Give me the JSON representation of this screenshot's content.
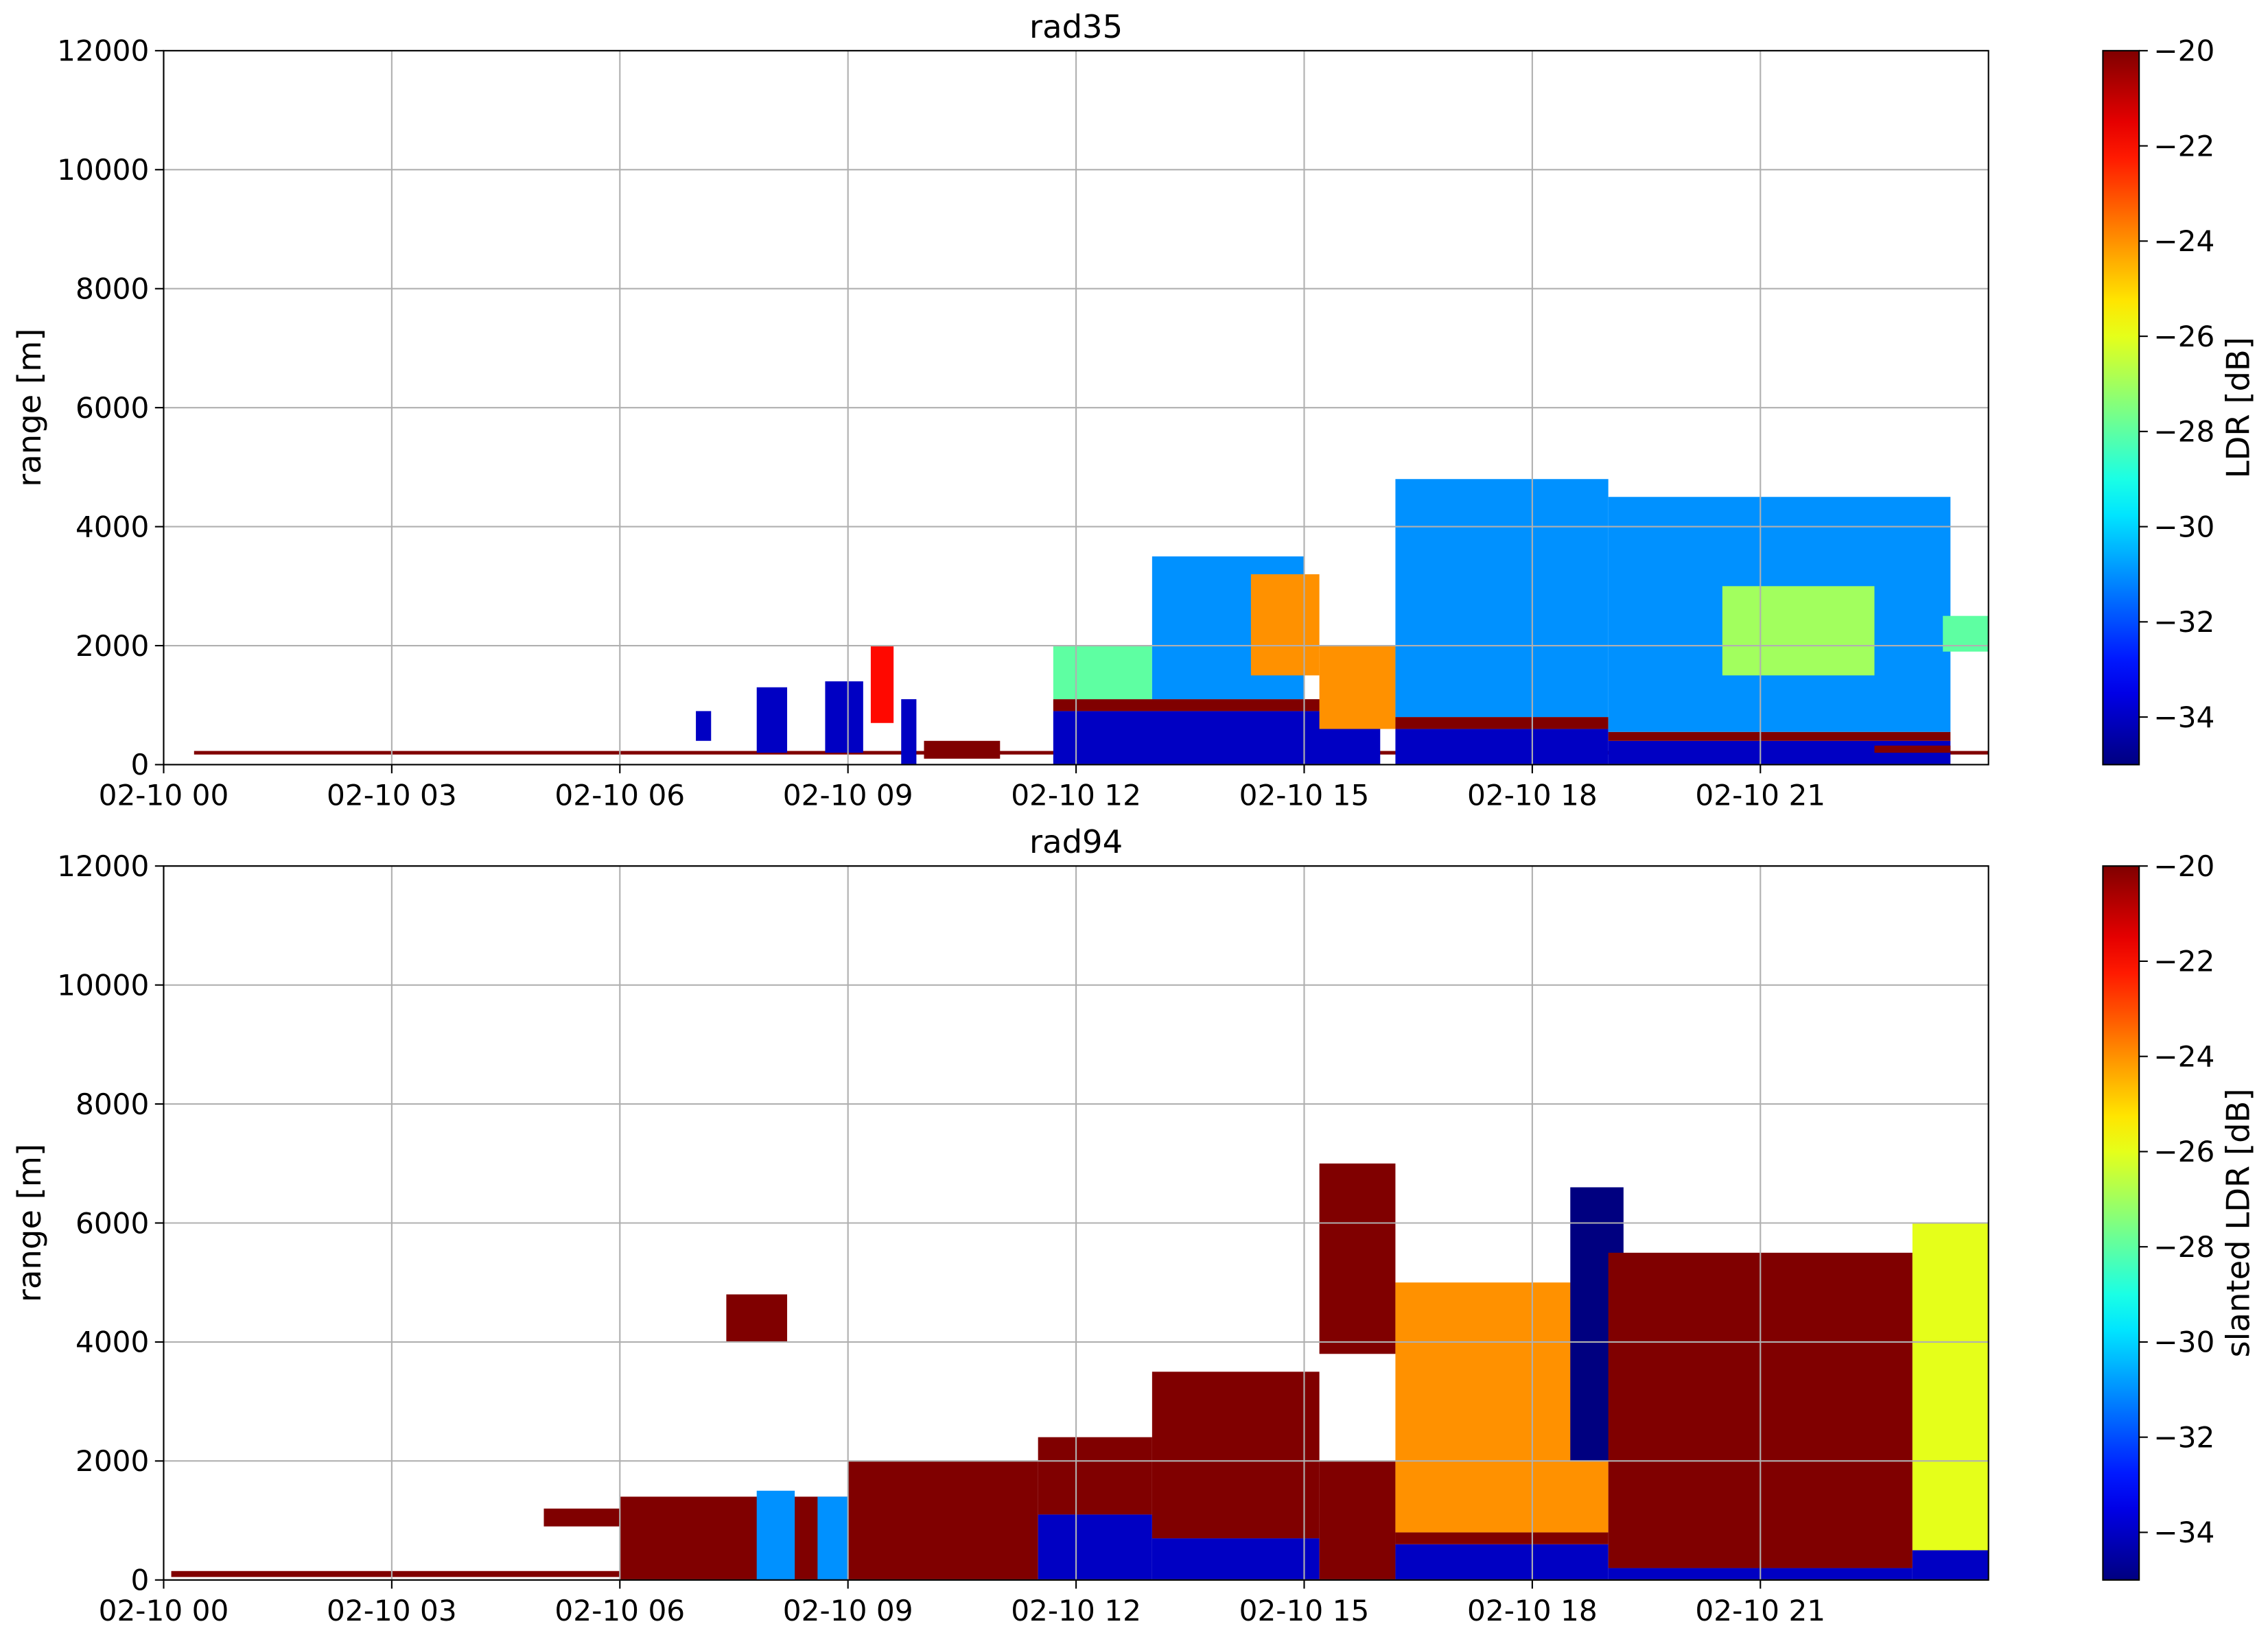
{
  "chart_data": [
    {
      "type": "heatmap",
      "title": "rad35",
      "y_label": "range [m]",
      "xlim": [
        0,
        24
      ],
      "ylim": [
        0,
        12000
      ],
      "xticks": [
        {
          "value": 0,
          "label": "02-10 00"
        },
        {
          "value": 3,
          "label": "02-10 03"
        },
        {
          "value": 6,
          "label": "02-10 06"
        },
        {
          "value": 9,
          "label": "02-10 09"
        },
        {
          "value": 12,
          "label": "02-10 12"
        },
        {
          "value": 15,
          "label": "02-10 15"
        },
        {
          "value": 18,
          "label": "02-10 18"
        },
        {
          "value": 21,
          "label": "02-10 21"
        }
      ],
      "yticks": [
        0,
        2000,
        4000,
        6000,
        8000,
        10000,
        12000
      ],
      "grid": true,
      "colorbar": {
        "label": "LDR [dB]",
        "lim": [
          -35,
          -20
        ],
        "ticks": [
          {
            "value": -20,
            "label": "−20"
          },
          {
            "value": -22,
            "label": "−22"
          },
          {
            "value": -24,
            "label": "−24"
          },
          {
            "value": -26,
            "label": "−26"
          },
          {
            "value": -28,
            "label": "−28"
          },
          {
            "value": -30,
            "label": "−30"
          },
          {
            "value": -32,
            "label": "−32"
          },
          {
            "value": -34,
            "label": "−34"
          }
        ]
      },
      "cells": {
        "x0": [
          0.4,
          7.0,
          7.8,
          8.7,
          9.3,
          9.7,
          10.0,
          11.7,
          11.7,
          11.7,
          13.0,
          14.3,
          15.2,
          16.2,
          16.2,
          16.2,
          19.0,
          19.0,
          19.0,
          20.5,
          22.5,
          23.4
        ],
        "x1": [
          24.0,
          7.2,
          8.2,
          9.2,
          9.6,
          9.9,
          11.0,
          16.0,
          16.0,
          13.0,
          15.0,
          15.2,
          16.2,
          19.0,
          19.0,
          19.0,
          23.5,
          23.5,
          23.5,
          22.5,
          23.5,
          24.0
        ],
        "y0": [
          170,
          400,
          200,
          200,
          700,
          0,
          100,
          0,
          900,
          1100,
          1100,
          1500,
          600,
          0,
          600,
          800,
          0,
          400,
          550,
          1500,
          200,
          1900
        ],
        "y1": [
          230,
          900,
          1300,
          1400,
          2000,
          1100,
          400,
          900,
          1100,
          2000,
          3500,
          3200,
          2000,
          600,
          800,
          4800,
          400,
          550,
          4500,
          3000,
          320,
          2500
        ],
        "values": [
          -20,
          -34,
          -34,
          -34,
          -22,
          -34,
          -20,
          -34,
          -20,
          -28,
          -31,
          -24,
          -24,
          -34,
          -20,
          -31,
          -34,
          -20,
          -31,
          -27,
          -20,
          -28
        ]
      }
    },
    {
      "type": "heatmap",
      "title": "rad94",
      "y_label": "range [m]",
      "xlim": [
        0,
        24
      ],
      "ylim": [
        0,
        12000
      ],
      "xticks": [
        {
          "value": 0,
          "label": "02-10 00"
        },
        {
          "value": 3,
          "label": "02-10 03"
        },
        {
          "value": 6,
          "label": "02-10 06"
        },
        {
          "value": 9,
          "label": "02-10 09"
        },
        {
          "value": 12,
          "label": "02-10 12"
        },
        {
          "value": 15,
          "label": "02-10 15"
        },
        {
          "value": 18,
          "label": "02-10 18"
        },
        {
          "value": 21,
          "label": "02-10 21"
        }
      ],
      "yticks": [
        0,
        2000,
        4000,
        6000,
        8000,
        10000,
        12000
      ],
      "grid": true,
      "colorbar": {
        "label": "slanted LDR [dB]",
        "lim": [
          -35,
          -20
        ],
        "ticks": [
          {
            "value": -20,
            "label": "−20"
          },
          {
            "value": -22,
            "label": "−22"
          },
          {
            "value": -24,
            "label": "−24"
          },
          {
            "value": -26,
            "label": "−26"
          },
          {
            "value": -28,
            "label": "−28"
          },
          {
            "value": -30,
            "label": "−30"
          },
          {
            "value": -32,
            "label": "−32"
          },
          {
            "value": -34,
            "label": "−34"
          }
        ]
      },
      "cells": {
        "x0": [
          0.1,
          5.0,
          6.0,
          7.4,
          7.8,
          8.6,
          9.0,
          11.5,
          11.5,
          13.0,
          13.0,
          15.2,
          15.2,
          16.2,
          16.2,
          16.2,
          18.5,
          19.0,
          19.0,
          23.0,
          23.0
        ],
        "x1": [
          7.0,
          6.0,
          9.0,
          8.2,
          8.3,
          9.2,
          11.5,
          13.0,
          13.0,
          15.2,
          15.2,
          16.2,
          16.2,
          19.0,
          19.0,
          19.0,
          19.2,
          23.0,
          23.0,
          24.0,
          24.0
        ],
        "y0": [
          50,
          900,
          0,
          4000,
          0,
          0,
          0,
          0,
          1100,
          0,
          700,
          0,
          3800,
          0,
          600,
          800,
          2000,
          0,
          200,
          0,
          500
        ],
        "y1": [
          150,
          1200,
          1400,
          4800,
          1500,
          1400,
          2000,
          1100,
          2400,
          700,
          3500,
          2000,
          7000,
          600,
          800,
          5000,
          6600,
          200,
          5500,
          500,
          6000
        ],
        "values": [
          -20,
          -20,
          -20,
          -20,
          -31,
          -31,
          -20,
          -34,
          -20,
          -34,
          -20,
          -20,
          -20,
          -34,
          -20,
          -24,
          -35,
          -34,
          -20,
          -34,
          -26
        ]
      }
    }
  ]
}
